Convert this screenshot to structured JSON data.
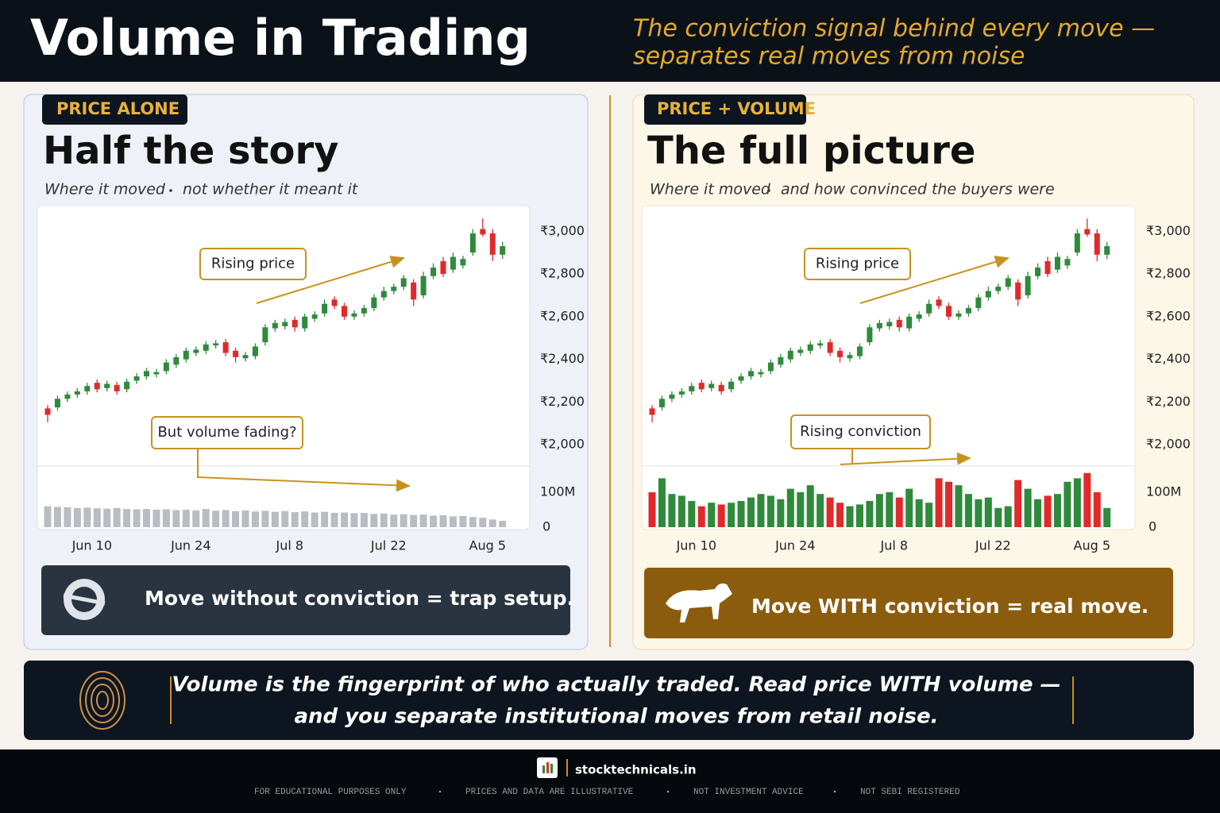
{
  "header": {
    "title": "Volume in Trading",
    "subtitle_line1": "The conviction signal behind every move —",
    "subtitle_line2": "separates real moves from noise"
  },
  "panels": [
    {
      "tag": "PRICE ALONE",
      "heading": "Half the story",
      "caption_left": "Where it moved",
      "caption_right": "not whether it meant it",
      "verdict": "Move without conviction = trap setup."
    },
    {
      "tag": "PRICE + VOLUME",
      "heading": "The full picture",
      "caption_left": "Where it moved",
      "caption_right": "and how convinced the buyers were",
      "verdict": "Move WITH conviction = real move."
    }
  ],
  "chart_data": [
    {
      "type": "candlestick",
      "annotations": [
        "Rising price",
        "But volume fading?"
      ],
      "categories": [
        null,
        null,
        null,
        null,
        "Jun 10",
        null,
        null,
        null,
        null,
        null,
        null,
        null,
        null,
        null,
        "Jun 24",
        null,
        null,
        null,
        null,
        null,
        null,
        null,
        null,
        null,
        "Jul 8",
        null,
        null,
        null,
        null,
        null,
        null,
        null,
        null,
        null,
        "Jul 22",
        null,
        null,
        null,
        null,
        null,
        null,
        null,
        null,
        null,
        "Aug 5",
        null,
        null
      ],
      "open": [
        2170,
        2175,
        2215,
        2235,
        2250,
        2290,
        2265,
        2280,
        2260,
        2300,
        2320,
        2330,
        2345,
        2375,
        2400,
        2430,
        2440,
        2465,
        2480,
        2440,
        2405,
        2415,
        2480,
        2545,
        2555,
        2585,
        2545,
        2590,
        2615,
        2680,
        2650,
        2600,
        2615,
        2640,
        2690,
        2720,
        2740,
        2760,
        2700,
        2790,
        2860,
        2820,
        2840,
        2900,
        3010,
        2990,
        2890
      ],
      "high": [
        2185,
        2230,
        2250,
        2265,
        2290,
        2305,
        2300,
        2295,
        2310,
        2335,
        2360,
        2355,
        2400,
        2425,
        2455,
        2460,
        2485,
        2490,
        2495,
        2455,
        2435,
        2475,
        2565,
        2585,
        2590,
        2600,
        2615,
        2625,
        2680,
        2695,
        2665,
        2630,
        2655,
        2705,
        2740,
        2755,
        2795,
        2775,
        2810,
        2850,
        2880,
        2900,
        2885,
        3010,
        3060,
        3010,
        2950
      ],
      "low": [
        2105,
        2160,
        2200,
        2220,
        2235,
        2245,
        2250,
        2235,
        2245,
        2285,
        2305,
        2315,
        2330,
        2360,
        2385,
        2415,
        2425,
        2450,
        2415,
        2385,
        2390,
        2400,
        2465,
        2530,
        2540,
        2530,
        2530,
        2575,
        2600,
        2635,
        2585,
        2585,
        2600,
        2625,
        2675,
        2705,
        2725,
        2650,
        2685,
        2775,
        2785,
        2805,
        2825,
        2885,
        2975,
        2860,
        2870
      ],
      "close": [
        2140,
        2215,
        2235,
        2250,
        2275,
        2260,
        2285,
        2250,
        2295,
        2320,
        2345,
        2340,
        2385,
        2410,
        2440,
        2445,
        2470,
        2475,
        2430,
        2410,
        2420,
        2460,
        2550,
        2570,
        2575,
        2550,
        2600,
        2610,
        2660,
        2650,
        2600,
        2615,
        2640,
        2690,
        2720,
        2740,
        2780,
        2680,
        2790,
        2830,
        2800,
        2880,
        2870,
        2990,
        2985,
        2890,
        2930
      ],
      "volume": [
        60000000,
        58000000,
        57000000,
        55000000,
        56000000,
        54000000,
        53000000,
        55000000,
        52000000,
        51000000,
        52000000,
        50000000,
        51000000,
        49000000,
        50000000,
        48000000,
        52000000,
        47000000,
        49000000,
        46000000,
        48000000,
        45000000,
        47000000,
        44000000,
        46000000,
        43000000,
        45000000,
        42000000,
        44000000,
        41000000,
        42000000,
        40000000,
        41000000,
        38000000,
        39000000,
        36000000,
        37000000,
        35000000,
        36000000,
        33000000,
        34000000,
        31000000,
        32000000,
        29000000,
        27000000,
        22000000,
        18000000
      ],
      "up_color": "#2f8a3c",
      "down_color": "#e02a2a",
      "volume_color": "#b9bcc3",
      "ylim": [
        1900,
        3120
      ],
      "yticks": [
        {
          "value": 3000,
          "label": "₹3,000"
        },
        {
          "value": 2800,
          "label": "₹2,800"
        },
        {
          "value": 2600,
          "label": "₹2,600"
        },
        {
          "value": 2400,
          "label": "₹2,400"
        },
        {
          "value": 2200,
          "label": "₹2,200"
        },
        {
          "value": 2000,
          "label": "₹2,000"
        }
      ],
      "vylim": [
        0,
        175000000
      ],
      "vyticks": [
        {
          "value": 100000000,
          "label": "100M"
        },
        0
      ]
    },
    {
      "type": "candlestick",
      "annotations": [
        "Rising price",
        "Rising conviction"
      ],
      "categories": [
        null,
        null,
        null,
        null,
        "Jun 10",
        null,
        null,
        null,
        null,
        null,
        null,
        null,
        null,
        null,
        "Jun 24",
        null,
        null,
        null,
        null,
        null,
        null,
        null,
        null,
        null,
        "Jul 8",
        null,
        null,
        null,
        null,
        null,
        null,
        null,
        null,
        null,
        "Jul 22",
        null,
        null,
        null,
        null,
        null,
        null,
        null,
        null,
        null,
        "Aug 5",
        null,
        null
      ],
      "open": [
        2170,
        2175,
        2215,
        2235,
        2250,
        2290,
        2265,
        2280,
        2260,
        2300,
        2320,
        2330,
        2345,
        2375,
        2400,
        2430,
        2440,
        2465,
        2480,
        2440,
        2405,
        2415,
        2480,
        2545,
        2555,
        2585,
        2545,
        2590,
        2615,
        2680,
        2650,
        2600,
        2615,
        2640,
        2690,
        2720,
        2740,
        2760,
        2700,
        2790,
        2860,
        2820,
        2840,
        2900,
        3010,
        2990,
        2890
      ],
      "high": [
        2185,
        2230,
        2250,
        2265,
        2290,
        2305,
        2300,
        2295,
        2310,
        2335,
        2360,
        2355,
        2400,
        2425,
        2455,
        2460,
        2485,
        2490,
        2495,
        2455,
        2435,
        2475,
        2565,
        2585,
        2590,
        2600,
        2615,
        2625,
        2680,
        2695,
        2665,
        2630,
        2655,
        2705,
        2740,
        2755,
        2795,
        2775,
        2810,
        2850,
        2880,
        2900,
        2885,
        3010,
        3060,
        3010,
        2950
      ],
      "low": [
        2105,
        2160,
        2200,
        2220,
        2235,
        2245,
        2250,
        2235,
        2245,
        2285,
        2305,
        2315,
        2330,
        2360,
        2385,
        2415,
        2425,
        2450,
        2415,
        2385,
        2390,
        2400,
        2465,
        2530,
        2540,
        2530,
        2530,
        2575,
        2600,
        2635,
        2585,
        2585,
        2600,
        2625,
        2675,
        2705,
        2725,
        2650,
        2685,
        2775,
        2785,
        2805,
        2825,
        2885,
        2975,
        2860,
        2870
      ],
      "close": [
        2140,
        2215,
        2235,
        2250,
        2275,
        2260,
        2285,
        2250,
        2295,
        2320,
        2345,
        2340,
        2385,
        2410,
        2440,
        2445,
        2470,
        2475,
        2430,
        2410,
        2420,
        2460,
        2550,
        2570,
        2575,
        2550,
        2600,
        2610,
        2660,
        2650,
        2600,
        2615,
        2640,
        2690,
        2720,
        2740,
        2780,
        2680,
        2790,
        2830,
        2800,
        2880,
        2870,
        2990,
        2985,
        2890,
        2930
      ],
      "volume": [
        100000000,
        140000000,
        95000000,
        90000000,
        75000000,
        60000000,
        70000000,
        65000000,
        70000000,
        75000000,
        85000000,
        95000000,
        90000000,
        80000000,
        110000000,
        100000000,
        120000000,
        95000000,
        85000000,
        70000000,
        60000000,
        65000000,
        75000000,
        95000000,
        100000000,
        85000000,
        110000000,
        80000000,
        70000000,
        140000000,
        130000000,
        120000000,
        95000000,
        80000000,
        85000000,
        55000000,
        60000000,
        135000000,
        110000000,
        80000000,
        90000000,
        95000000,
        130000000,
        140000000,
        155000000,
        100000000,
        55000000
      ],
      "up_color": "#2f8a3c",
      "down_color": "#e02a2a",
      "ylim": [
        1900,
        3120
      ],
      "yticks": [
        {
          "value": 3000,
          "label": "₹3,000"
        },
        {
          "value": 2800,
          "label": "₹2,800"
        },
        {
          "value": 2600,
          "label": "₹2,600"
        },
        {
          "value": 2400,
          "label": "₹2,400"
        },
        {
          "value": 2200,
          "label": "₹2,200"
        },
        {
          "value": 2000,
          "label": "₹2,000"
        }
      ],
      "vylim": [
        0,
        175000000
      ],
      "vyticks": [
        {
          "value": 100000000,
          "label": "100M"
        },
        0
      ]
    }
  ],
  "banner": {
    "line1": "Volume is the fingerprint of who actually traded. Read price WITH volume —",
    "line2": "and you separate institutional moves from retail noise."
  },
  "footer": {
    "brand": "stocktechnicals.in",
    "notes": [
      "FOR EDUCATIONAL PURPOSES ONLY",
      "PRICES AND DATA ARE ILLUSTRATIVE",
      "NOT INVESTMENT ADVICE",
      "NOT SEBI REGISTERED"
    ]
  }
}
